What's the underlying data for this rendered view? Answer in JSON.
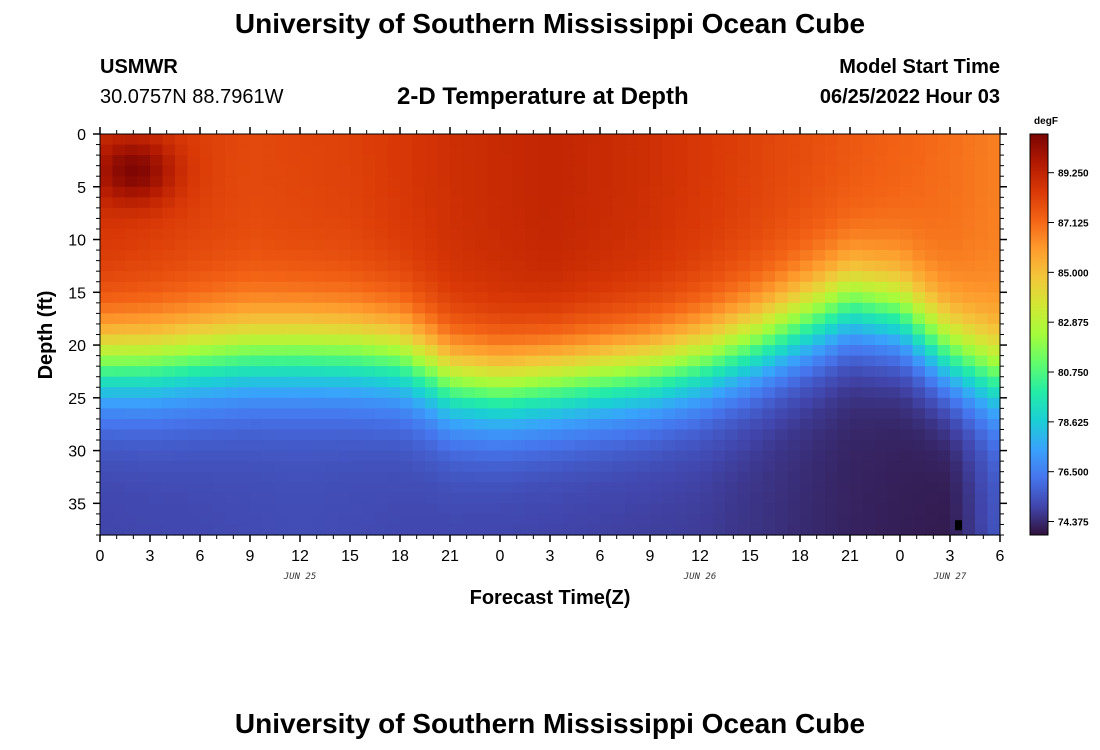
{
  "header": {
    "title": "University of Southern Mississippi Ocean Cube",
    "station_name": "USMWR",
    "station_coords": "30.0757N  88.7961W",
    "plot_subtitle": "2-D Temperature at Depth",
    "model_start_label": "Model Start Time",
    "model_start_value": "06/25/2022 Hour 03"
  },
  "footer": {
    "title_repeat": "University of Southern Mississippi Ocean Cube"
  },
  "chart_data": {
    "type": "heatmap",
    "title": "2-D Temperature at Depth",
    "xlabel": "Forecast Time(Z)",
    "ylabel": "Depth (ft)",
    "xlim": [
      0,
      54
    ],
    "ylim": [
      38,
      0
    ],
    "x_tick_values": [
      0,
      3,
      6,
      9,
      12,
      15,
      18,
      21,
      24,
      27,
      30,
      33,
      36,
      39,
      42,
      45,
      48,
      51,
      54
    ],
    "x_tick_labels": [
      "0",
      "3",
      "6",
      "9",
      "12",
      "15",
      "18",
      "21",
      "0",
      "3",
      "6",
      "9",
      "12",
      "15",
      "18",
      "21",
      "0",
      "3",
      "6"
    ],
    "y_ticks": [
      0,
      5,
      10,
      15,
      20,
      25,
      30,
      35
    ],
    "date_labels": [
      {
        "x": 12,
        "text": "JUN 25"
      },
      {
        "x": 36,
        "text": "JUN 26"
      },
      {
        "x": 51,
        "text": "JUN 27"
      }
    ],
    "colorbar": {
      "unit": "degF",
      "min": 73.8,
      "max": 90.9,
      "tick_labels": [
        "89.250",
        "87.125",
        "85.000",
        "82.875",
        "80.750",
        "78.625",
        "76.500",
        "74.375"
      ],
      "tick_values": [
        89.25,
        87.125,
        85.0,
        82.875,
        80.75,
        78.625,
        76.5,
        74.375
      ],
      "colors": [
        "#30123b",
        "#4145ab",
        "#4675ed",
        "#39a2fc",
        "#1bcfd4",
        "#24eca6",
        "#61fc6c",
        "#a4fc3b",
        "#d1e834",
        "#f3c63a",
        "#fe9b2d",
        "#f36315",
        "#d93806",
        "#b11901",
        "#7a0402"
      ]
    },
    "mixed_layer_depth_ft": [
      {
        "x": 0,
        "d": 21.5
      },
      {
        "x": 3,
        "d": 21.5
      },
      {
        "x": 6,
        "d": 21
      },
      {
        "x": 9,
        "d": 20.6
      },
      {
        "x": 12,
        "d": 20.5
      },
      {
        "x": 15,
        "d": 20.6
      },
      {
        "x": 18,
        "d": 21
      },
      {
        "x": 20,
        "d": 22.5
      },
      {
        "x": 21,
        "d": 23.5
      },
      {
        "x": 24,
        "d": 24
      },
      {
        "x": 27,
        "d": 23.5
      },
      {
        "x": 30,
        "d": 23
      },
      {
        "x": 33,
        "d": 22.5
      },
      {
        "x": 36,
        "d": 21.5
      },
      {
        "x": 39,
        "d": 20
      },
      {
        "x": 42,
        "d": 18
      },
      {
        "x": 45,
        "d": 16
      },
      {
        "x": 48,
        "d": 17
      },
      {
        "x": 51,
        "d": 21
      },
      {
        "x": 54,
        "d": 23
      }
    ],
    "surface_temp_degF": [
      {
        "x": 0,
        "t": 88.6
      },
      {
        "x": 3,
        "t": 88.4
      },
      {
        "x": 9,
        "t": 88.0
      },
      {
        "x": 15,
        "t": 88.2
      },
      {
        "x": 21,
        "t": 88.8
      },
      {
        "x": 27,
        "t": 89.2
      },
      {
        "x": 33,
        "t": 88.8
      },
      {
        "x": 39,
        "t": 88.2
      },
      {
        "x": 45,
        "t": 87.6
      },
      {
        "x": 51,
        "t": 87.0
      },
      {
        "x": 54,
        "t": 86.6
      }
    ],
    "warm_spot": {
      "x": 2,
      "d": 3.5,
      "t": 90.8
    },
    "bottom_temp_degF": [
      {
        "x": 0,
        "t": 75.0
      },
      {
        "x": 12,
        "t": 75.2
      },
      {
        "x": 24,
        "t": 75.0
      },
      {
        "x": 36,
        "t": 74.8
      },
      {
        "x": 45,
        "t": 74.2
      },
      {
        "x": 51,
        "t": 74.0
      },
      {
        "x": 54,
        "t": 75.5
      }
    ]
  }
}
